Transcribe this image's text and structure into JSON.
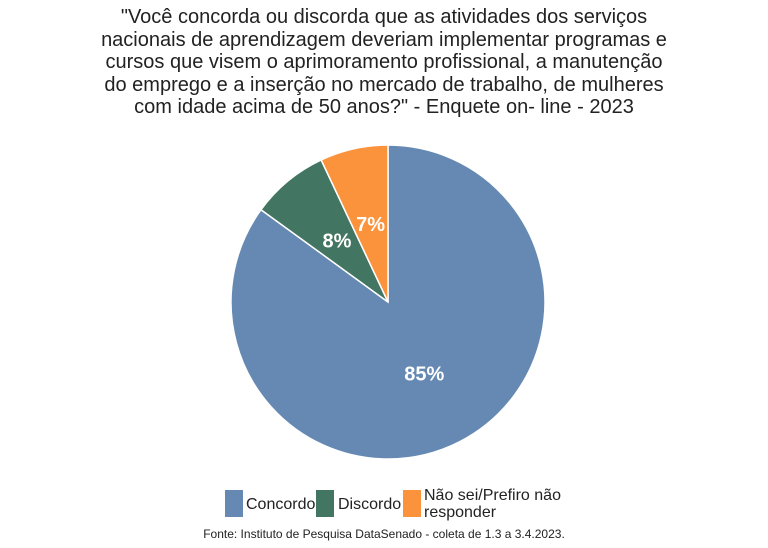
{
  "chart_data": {
    "type": "pie",
    "title_lines": [
      "\"Você concorda ou discorda que as atividades dos serviços",
      "nacionais de aprendizagem deveriam implementar programas e",
      "cursos que visem o aprimoramento profissional, a manutenção",
      "do emprego e a inserção no mercado de trabalho, de mulheres",
      "com idade acima de 50 anos?\" - Enquete on- line - 2023"
    ],
    "slices": [
      {
        "name": "Concordo",
        "value": 85,
        "label": "85%",
        "color": "#6589B3"
      },
      {
        "name": "Discordo",
        "value": 8,
        "label": "8%",
        "color": "#437563"
      },
      {
        "name": "Não sei/Prefiro não responder",
        "value": 7,
        "label": "7%",
        "color": "#FB923C"
      }
    ],
    "legend": {
      "placement": "bottom",
      "entries": [
        "Concordo",
        "Discordo",
        "Não sei/Prefiro não",
        "responder"
      ]
    },
    "footer": "Fonte: Instituto de Pesquisa DataSenado - coleta de 1.3 a 3.4.2023."
  }
}
